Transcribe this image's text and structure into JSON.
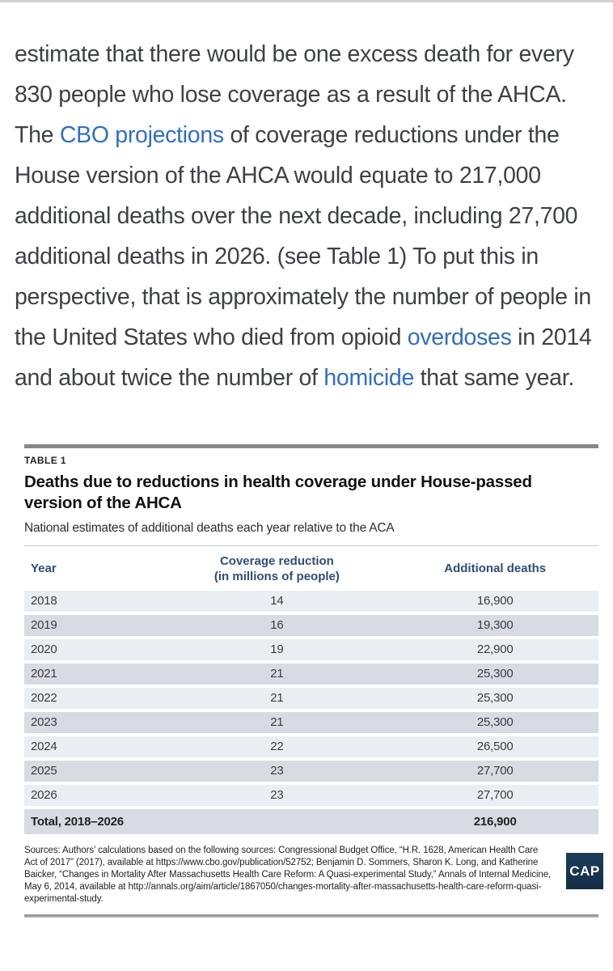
{
  "article": {
    "segments": [
      {
        "type": "text",
        "text": "estimate that there would be one excess death for every 830 people who lose coverage as a result of the AHCA. The "
      },
      {
        "type": "link",
        "text": "CBO projections"
      },
      {
        "type": "text",
        "text": " of coverage reductions under the House version of the AHCA would equate to 217,000 additional deaths over the next decade, including 27,700 additional deaths in 2026. (see Table 1) To put this in perspective, that is approximately the number of people in the United States who died from opioid "
      },
      {
        "type": "link",
        "text": "overdoses"
      },
      {
        "type": "text",
        "text": " in 2014 and about twice the number of "
      },
      {
        "type": "link",
        "text": "homicide"
      },
      {
        "type": "text",
        "text": " that same year."
      }
    ],
    "link_color": "#2f6fc4",
    "text_color": "#3e4145"
  },
  "table_figure": {
    "kicker": "TABLE 1",
    "title": "Deaths due to reductions in health coverage under House-passed version of the AHCA",
    "subtitle": "National estimates of additional deaths each year relative to the ACA",
    "columns": {
      "year": "Year",
      "coverage_line1": "Coverage reduction",
      "coverage_line2": "(in millions of people)",
      "deaths": "Additional deaths"
    },
    "header_color": "#2f4d7a",
    "row_light_color": "#eaedf2",
    "row_dark_color": "#d8dce2",
    "rows": [
      {
        "year": "2018",
        "coverage": "14",
        "deaths": "16,900"
      },
      {
        "year": "2019",
        "coverage": "16",
        "deaths": "19,300"
      },
      {
        "year": "2020",
        "coverage": "19",
        "deaths": "22,900"
      },
      {
        "year": "2021",
        "coverage": "21",
        "deaths": "25,300"
      },
      {
        "year": "2022",
        "coverage": "21",
        "deaths": "25,300"
      },
      {
        "year": "2023",
        "coverage": "21",
        "deaths": "25,300"
      },
      {
        "year": "2024",
        "coverage": "22",
        "deaths": "26,500"
      },
      {
        "year": "2025",
        "coverage": "23",
        "deaths": "27,700"
      },
      {
        "year": "2026",
        "coverage": "23",
        "deaths": "27,700"
      }
    ],
    "total": {
      "label": "Total, 2018–2026",
      "coverage": "",
      "deaths": "216,900"
    }
  },
  "footer": {
    "sources": "Sources: Authors’ calculations based on the following sources: Congressional Budget Office, “H.R. 1628, American Health Care Act of 2017” (2017), available at https://www.cbo.gov/publication/52752; Benjamin D. Sommers, Sharon K. Long, and Katherine Baicker, “Changes in Mortality After Massachusetts Health Care Reform: A Quasi-experimental Study,” Annals of Internal Medicine, May 6, 2014, available at http://annals.org/aim/article/1867050/changes-mortality-after-massachusetts-health-care-reform-quasi-experimental-study.",
    "logo_text": "CAP",
    "logo_bg_color": "#16334e"
  }
}
